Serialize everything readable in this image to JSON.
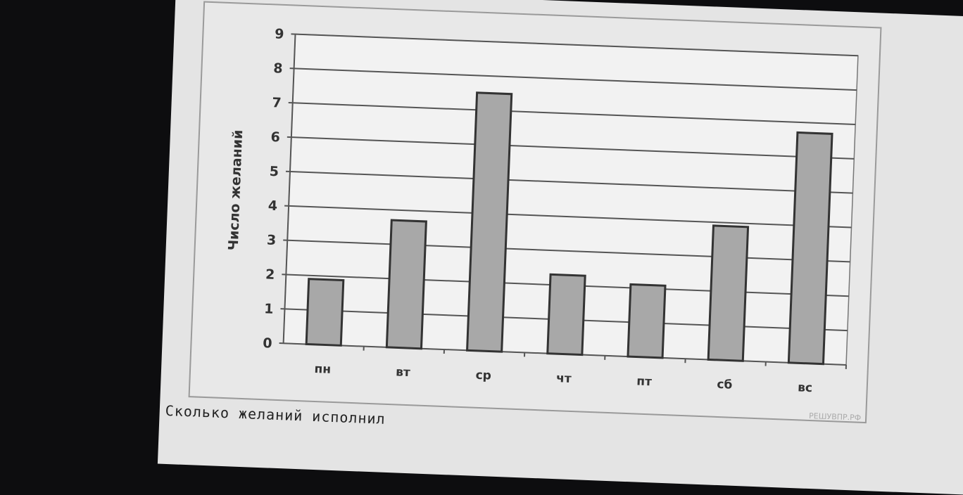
{
  "chart_data": {
    "type": "bar",
    "categories": [
      "пн",
      "вт",
      "ср",
      "чт",
      "пт",
      "сб",
      "вс"
    ],
    "values": [
      1.9,
      3.7,
      7.5,
      2.3,
      2.1,
      3.9,
      6.7
    ],
    "title": "",
    "xlabel": "",
    "ylabel": "Число желаний",
    "ylim": [
      0,
      9
    ],
    "yticks": [
      0,
      1,
      2,
      3,
      4,
      5,
      6,
      7,
      8,
      9
    ],
    "grid": true,
    "bar_color": "#a8a8a8",
    "bar_edge_color": "#333333"
  },
  "caption": "Сколько желаний исполнил",
  "watermark": "РЕШУВПР.РФ"
}
